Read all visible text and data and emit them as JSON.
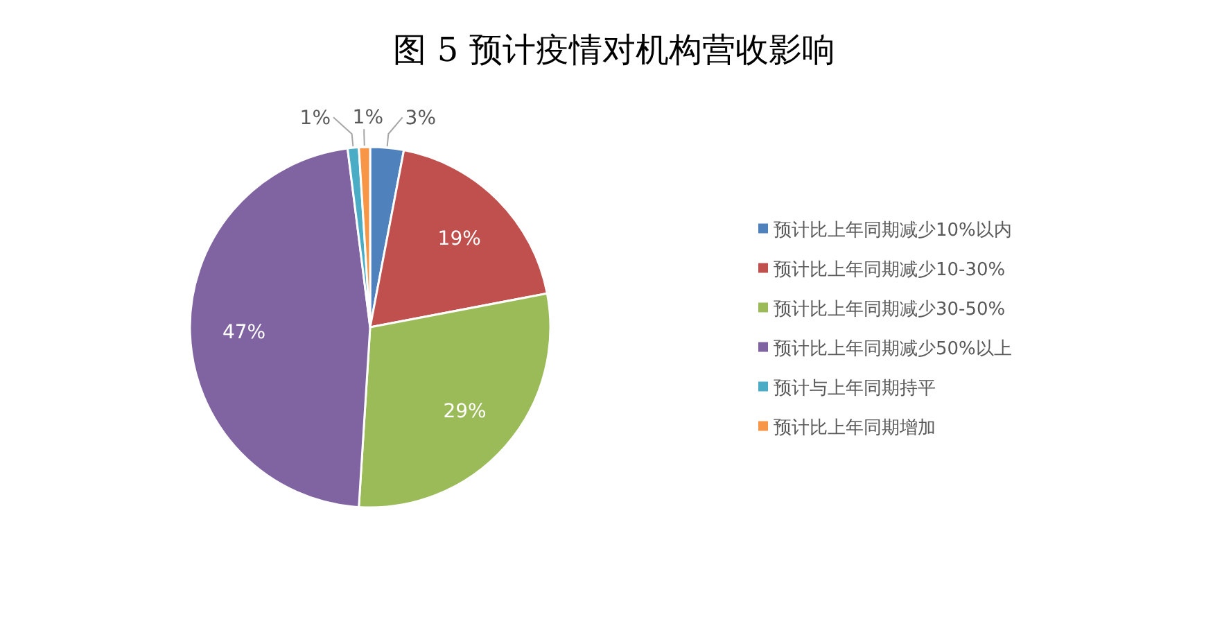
{
  "chart_data": {
    "type": "pie",
    "title": "图 5 预计疫情对机构营收影响",
    "categories": [
      "预计比上年同期减少10%以内",
      "预计比上年同期减少10-30%",
      "预计比上年同期减少30-50%",
      "预计比上年同期减少50%以上",
      "预计与上年同期持平",
      "预计比上年同期增加"
    ],
    "values": [
      3,
      19,
      29,
      47,
      1,
      1
    ],
    "colors": [
      "#4f81bd",
      "#c0504d",
      "#9bbb59",
      "#8064a2",
      "#4bacc6",
      "#f79646"
    ],
    "value_labels": [
      "3%",
      "19%",
      "29%",
      "47%",
      "1%",
      "1%"
    ],
    "legend": "right"
  }
}
